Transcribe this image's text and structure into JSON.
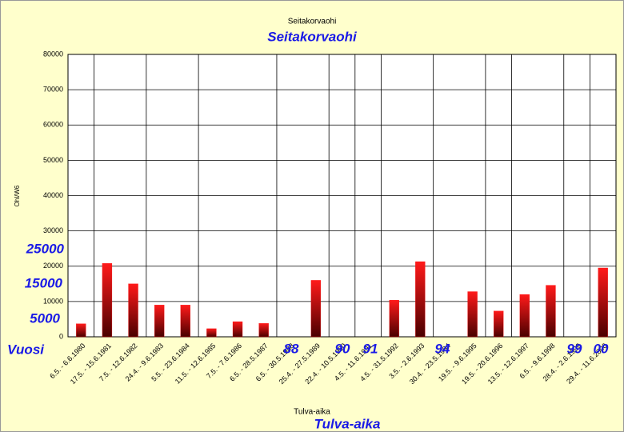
{
  "chart_data": {
    "type": "bar",
    "title": "Seitakorvaohi",
    "x_label": "Tulva-aika",
    "y_label": "Ohl/W6",
    "categories": [
      "6.5. - 6.6.1980",
      "17.5. - 15.6.1981",
      "7.5. - 12.6.1982",
      "24.4. - 9.6.1983",
      "5.5. - 23.6.1984",
      "11.5. - 12.6.1985",
      "7.5. - 7.6.1986",
      "6.5. - 28.5.1987",
      "6.5. - 30.5.1988",
      "25.4. - 27.5.1989",
      "22.4. - 10.5.1990",
      "4.5. - 11.6.1991",
      "4.5. - 31.5.1992",
      "3.5. - 2.6.1993",
      "30.4. - 23.5.1994",
      "19.5. - 9.6.1995",
      "19.5. - 20.6.1996",
      "13.5. - 12.6.1997",
      "6.5. - 9.6.1998",
      "28.4. - 2.6.1999",
      "29.4. - 11.6.2000"
    ],
    "values": [
      3700,
      20800,
      15000,
      9000,
      9000,
      2300,
      4300,
      3800,
      0,
      16000,
      0,
      0,
      10400,
      21300,
      0,
      12800,
      7300,
      12000,
      14600,
      0,
      19500
    ],
    "color": "#ff0000",
    "ylim": [
      0,
      80000
    ],
    "yticks": [
      0,
      10000,
      20000,
      30000,
      40000,
      50000,
      60000,
      70000,
      80000
    ],
    "grid": true,
    "annotations": [
      "Seitakorvaohi",
      "25000",
      "15000",
      "5000",
      "Vuosi",
      "88",
      "90",
      "91",
      "94",
      "99",
      "00",
      "Tulva-aika"
    ]
  }
}
